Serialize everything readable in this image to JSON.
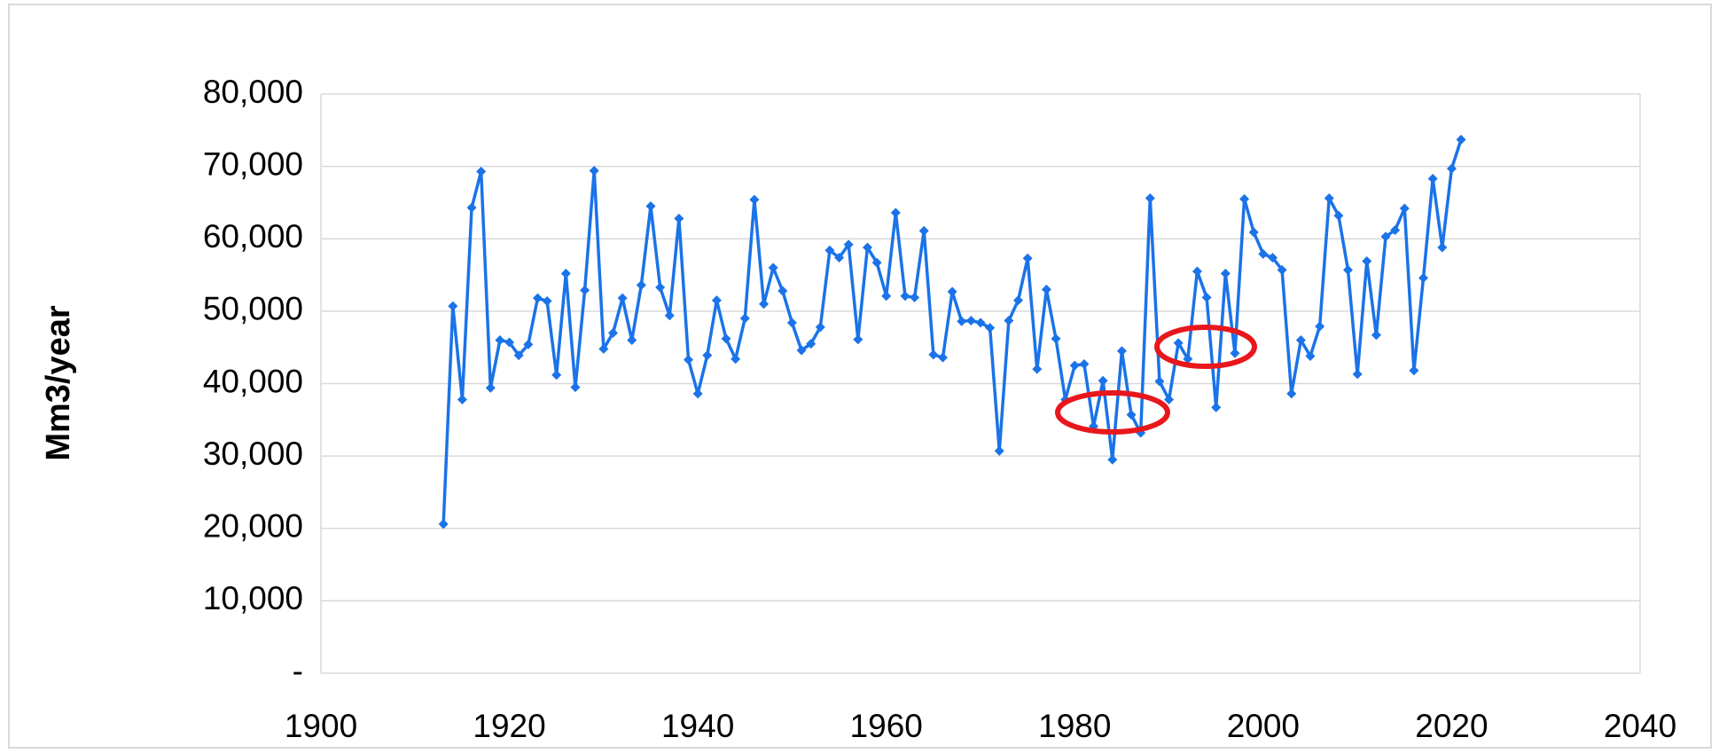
{
  "chart_data": {
    "type": "line",
    "ylabel": "Mm3/year",
    "color": "#1a73e8",
    "grid": true,
    "x": [
      1913,
      1914,
      1915,
      1916,
      1917,
      1918,
      1919,
      1920,
      1921,
      1922,
      1923,
      1924,
      1925,
      1926,
      1927,
      1928,
      1929,
      1930,
      1931,
      1932,
      1933,
      1934,
      1935,
      1936,
      1937,
      1938,
      1939,
      1940,
      1941,
      1942,
      1943,
      1944,
      1945,
      1946,
      1947,
      1948,
      1949,
      1950,
      1951,
      1952,
      1953,
      1954,
      1955,
      1956,
      1957,
      1958,
      1959,
      1960,
      1961,
      1962,
      1963,
      1964,
      1965,
      1966,
      1967,
      1968,
      1969,
      1970,
      1971,
      1972,
      1973,
      1974,
      1975,
      1976,
      1977,
      1978,
      1979,
      1980,
      1981,
      1982,
      1983,
      1984,
      1985,
      1986,
      1987,
      1988,
      1989,
      1990,
      1991,
      1992,
      1993,
      1994,
      1995,
      1996,
      1997,
      1998,
      1999,
      2000,
      2001,
      2002,
      2003,
      2004,
      2005,
      2006,
      2007,
      2008,
      2009,
      2010,
      2011,
      2012,
      2013,
      2014,
      2015,
      2016,
      2017,
      2018,
      2019,
      2020,
      2021
    ],
    "values": [
      20600,
      50700,
      37800,
      64300,
      69300,
      39400,
      46000,
      45700,
      43900,
      45400,
      51800,
      51400,
      41200,
      55200,
      39500,
      52900,
      69400,
      44800,
      47000,
      51800,
      46000,
      53600,
      64500,
      53300,
      49400,
      62800,
      43300,
      38600,
      43900,
      51500,
      46200,
      43400,
      49000,
      65400,
      51000,
      56000,
      52800,
      48400,
      44600,
      45500,
      47800,
      58400,
      57400,
      59200,
      46100,
      58800,
      56700,
      52100,
      63600,
      52100,
      51900,
      61100,
      44000,
      43600,
      52700,
      48600,
      48700,
      48400,
      47700,
      30700,
      48700,
      51500,
      57300,
      42000,
      53000,
      46200,
      37800,
      42500,
      42700,
      34100,
      40400,
      29500,
      44500,
      35700,
      33200,
      65600,
      40300,
      37800,
      45600,
      43400,
      55500,
      51900,
      36700,
      55200,
      44200,
      65500,
      60900,
      57900,
      57400,
      55700,
      38600,
      46000,
      43800,
      47900,
      65600,
      63200,
      55700,
      41300,
      56900,
      46700,
      60300,
      61200,
      64200,
      41800,
      54600,
      68300,
      58800,
      69700,
      73700
    ],
    "xlim": [
      1900,
      2040
    ],
    "xticks": [
      1900,
      1920,
      1940,
      1960,
      1980,
      2000,
      2020,
      2040
    ],
    "ylim": [
      0,
      80000
    ],
    "yticks": [
      {
        "value": 0,
        "label": "-"
      },
      {
        "value": 10000,
        "label": "10,000"
      },
      {
        "value": 20000,
        "label": "20,000"
      },
      {
        "value": 30000,
        "label": "30,000"
      },
      {
        "value": 40000,
        "label": "40,000"
      },
      {
        "value": 50000,
        "label": "50,000"
      },
      {
        "value": 60000,
        "label": "60,000"
      },
      {
        "value": 70000,
        "label": "70,000"
      },
      {
        "value": 80000,
        "label": "80,000"
      }
    ]
  }
}
